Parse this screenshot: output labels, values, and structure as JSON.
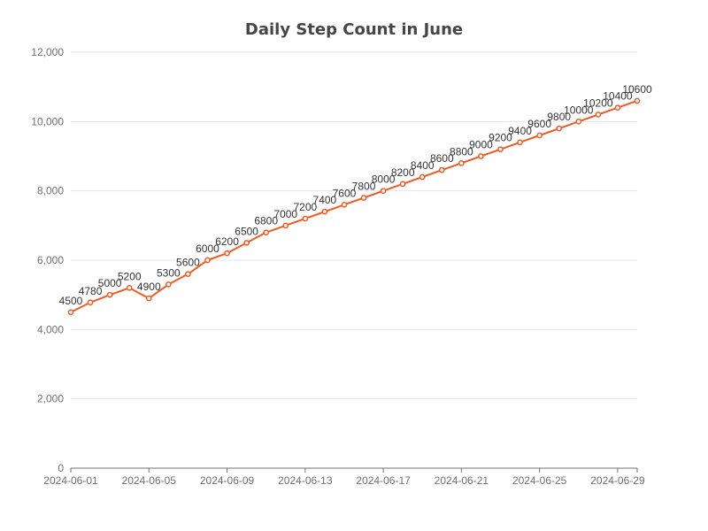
{
  "chart_data": {
    "type": "line",
    "title": "Daily Step Count in June",
    "xlabel": "",
    "ylabel": "",
    "x": [
      "2024-06-01",
      "2024-06-02",
      "2024-06-03",
      "2024-06-04",
      "2024-06-05",
      "2024-06-06",
      "2024-06-07",
      "2024-06-08",
      "2024-06-09",
      "2024-06-10",
      "2024-06-11",
      "2024-06-12",
      "2024-06-13",
      "2024-06-14",
      "2024-06-15",
      "2024-06-16",
      "2024-06-17",
      "2024-06-18",
      "2024-06-19",
      "2024-06-20",
      "2024-06-21",
      "2024-06-22",
      "2024-06-23",
      "2024-06-24",
      "2024-06-25",
      "2024-06-26",
      "2024-06-27",
      "2024-06-28",
      "2024-06-29",
      "2024-06-30"
    ],
    "x_tick_labels": [
      "2024-06-01",
      "2024-06-05",
      "2024-06-09",
      "2024-06-13",
      "2024-06-17",
      "2024-06-21",
      "2024-06-25",
      "2024-06-29"
    ],
    "series": [
      {
        "values": [
          4500,
          4780,
          5000,
          5200,
          4900,
          5300,
          5600,
          6000,
          6200,
          6500,
          6800,
          7000,
          7200,
          7400,
          7600,
          7800,
          8000,
          8200,
          8400,
          8600,
          8800,
          9000,
          9200,
          9400,
          9600,
          9800,
          10000,
          10200,
          10400,
          10600
        ],
        "color": "#f15a22"
      }
    ],
    "ylim": [
      0,
      12000
    ],
    "y_ticks": [
      0,
      2000,
      4000,
      6000,
      8000,
      10000,
      12000
    ],
    "y_tick_labels": [
      "0",
      "2,000",
      "4,000",
      "6,000",
      "8,000",
      "10,000",
      "12,000"
    ],
    "grid": true,
    "legend": "none"
  }
}
